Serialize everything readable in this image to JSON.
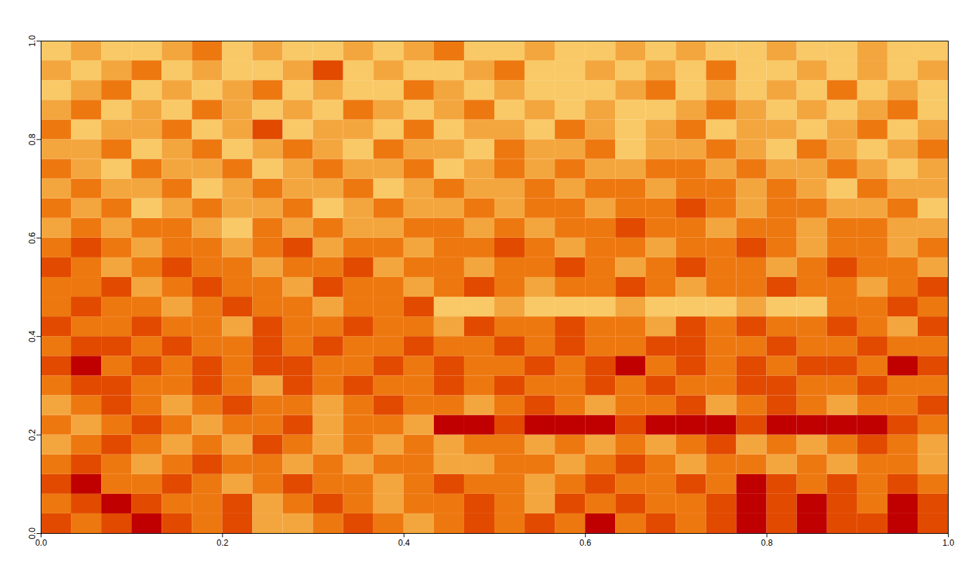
{
  "chart_data": {
    "type": "heatmap",
    "xlim": [
      0,
      1
    ],
    "ylim": [
      0,
      1
    ],
    "xticks": [
      {
        "value": 0,
        "label": "0.0"
      },
      {
        "value": 0.2,
        "label": "0.2"
      },
      {
        "value": 0.4,
        "label": "0.4"
      },
      {
        "value": 0.6,
        "label": "0.6"
      },
      {
        "value": 0.8,
        "label": "0.8"
      },
      {
        "value": 1,
        "label": "1.0"
      }
    ],
    "yticks": [
      {
        "value": 0,
        "label": "0.0"
      },
      {
        "value": 0.2,
        "label": "0.2"
      },
      {
        "value": 0.4,
        "label": "0.4"
      },
      {
        "value": 0.6,
        "label": "0.6"
      },
      {
        "value": 0.8,
        "label": "0.8"
      },
      {
        "value": 1,
        "label": "1.0"
      }
    ],
    "colors": [
      "#c00000",
      "#e24a00",
      "#ee7810",
      "#f4a63e",
      "#f8c966"
    ],
    "cells": [
      [
        1,
        2,
        1,
        0,
        1,
        2,
        1,
        3,
        3,
        2,
        1,
        2,
        3,
        2,
        1,
        2,
        1,
        2,
        0,
        2,
        1,
        2,
        1,
        0,
        1,
        0,
        1,
        1,
        0,
        1
      ],
      [
        2,
        1,
        0,
        1,
        2,
        2,
        1,
        3,
        2,
        1,
        2,
        3,
        2,
        2,
        1,
        2,
        3,
        1,
        2,
        1,
        2,
        2,
        1,
        0,
        1,
        0,
        1,
        2,
        0,
        1
      ],
      [
        1,
        0,
        2,
        2,
        1,
        2,
        3,
        2,
        1,
        2,
        2,
        3,
        2,
        1,
        2,
        2,
        3,
        2,
        1,
        2,
        2,
        1,
        2,
        0,
        1,
        2,
        1,
        2,
        1,
        2
      ],
      [
        2,
        1,
        2,
        3,
        2,
        1,
        2,
        2,
        3,
        2,
        3,
        2,
        2,
        3,
        3,
        2,
        2,
        3,
        2,
        1,
        2,
        3,
        2,
        2,
        3,
        2,
        3,
        2,
        2,
        3
      ],
      [
        3,
        2,
        1,
        2,
        3,
        2,
        3,
        1,
        2,
        3,
        2,
        3,
        2,
        3,
        2,
        2,
        3,
        2,
        3,
        2,
        3,
        2,
        1,
        3,
        2,
        3,
        2,
        1,
        2,
        3
      ],
      [
        2,
        3,
        2,
        1,
        2,
        3,
        2,
        2,
        1,
        3,
        2,
        2,
        3,
        0,
        0,
        1,
        0,
        0,
        0,
        1,
        0,
        0,
        0,
        1,
        0,
        0,
        0,
        0,
        1,
        2
      ],
      [
        3,
        2,
        1,
        2,
        3,
        2,
        1,
        2,
        2,
        3,
        2,
        1,
        2,
        2,
        3,
        2,
        1,
        2,
        3,
        2,
        2,
        1,
        3,
        2,
        1,
        2,
        3,
        2,
        2,
        1
      ],
      [
        2,
        1,
        1,
        2,
        2,
        1,
        2,
        3,
        1,
        2,
        1,
        2,
        2,
        1,
        2,
        1,
        2,
        2,
        1,
        2,
        1,
        2,
        2,
        1,
        1,
        2,
        2,
        1,
        2,
        2
      ],
      [
        1,
        0,
        2,
        1,
        2,
        1,
        2,
        1,
        1,
        2,
        2,
        1,
        2,
        1,
        2,
        2,
        1,
        2,
        1,
        0,
        2,
        1,
        2,
        1,
        2,
        1,
        1,
        2,
        0,
        1
      ],
      [
        2,
        1,
        1,
        2,
        1,
        2,
        2,
        1,
        2,
        1,
        2,
        2,
        1,
        2,
        2,
        1,
        2,
        1,
        2,
        2,
        1,
        1,
        2,
        2,
        1,
        2,
        2,
        1,
        2,
        2
      ],
      [
        1,
        2,
        2,
        1,
        2,
        2,
        3,
        1,
        2,
        2,
        1,
        2,
        2,
        3,
        1,
        2,
        2,
        1,
        2,
        2,
        3,
        1,
        2,
        1,
        2,
        2,
        1,
        2,
        3,
        1
      ],
      [
        2,
        1,
        2,
        2,
        3,
        2,
        1,
        2,
        2,
        3,
        2,
        2,
        1,
        4,
        4,
        3,
        4,
        4,
        4,
        3,
        4,
        4,
        4,
        3,
        4,
        4,
        2,
        2,
        1,
        2
      ],
      [
        2,
        2,
        1,
        3,
        2,
        1,
        2,
        2,
        3,
        1,
        2,
        2,
        3,
        2,
        1,
        2,
        3,
        2,
        2,
        1,
        2,
        3,
        2,
        2,
        1,
        2,
        2,
        3,
        2,
        1
      ],
      [
        1,
        2,
        3,
        2,
        1,
        2,
        2,
        3,
        2,
        2,
        1,
        3,
        2,
        2,
        3,
        2,
        2,
        1,
        2,
        3,
        2,
        1,
        2,
        2,
        3,
        2,
        1,
        2,
        2,
        3
      ],
      [
        2,
        1,
        2,
        3,
        2,
        2,
        3,
        2,
        1,
        3,
        2,
        2,
        3,
        2,
        2,
        1,
        2,
        3,
        2,
        2,
        3,
        2,
        2,
        1,
        2,
        3,
        2,
        2,
        3,
        2
      ],
      [
        3,
        2,
        3,
        2,
        2,
        3,
        4,
        2,
        3,
        2,
        3,
        3,
        2,
        2,
        3,
        2,
        3,
        2,
        2,
        1,
        2,
        2,
        3,
        2,
        2,
        3,
        2,
        2,
        3,
        3
      ],
      [
        2,
        3,
        2,
        4,
        3,
        2,
        3,
        3,
        2,
        4,
        3,
        2,
        3,
        3,
        2,
        3,
        2,
        2,
        3,
        2,
        2,
        1,
        2,
        3,
        2,
        2,
        3,
        3,
        2,
        4
      ],
      [
        3,
        2,
        3,
        3,
        2,
        4,
        3,
        2,
        3,
        3,
        2,
        4,
        3,
        2,
        3,
        3,
        2,
        3,
        2,
        2,
        3,
        2,
        2,
        3,
        2,
        3,
        4,
        2,
        3,
        3
      ],
      [
        2,
        3,
        4,
        2,
        3,
        3,
        2,
        4,
        3,
        2,
        3,
        3,
        2,
        4,
        3,
        2,
        3,
        2,
        3,
        3,
        2,
        2,
        3,
        2,
        3,
        3,
        2,
        3,
        4,
        3
      ],
      [
        3,
        3,
        2,
        4,
        3,
        2,
        4,
        3,
        2,
        3,
        4,
        2,
        3,
        3,
        4,
        2,
        3,
        3,
        2,
        4,
        3,
        3,
        2,
        3,
        4,
        2,
        3,
        4,
        3,
        2
      ],
      [
        2,
        4,
        3,
        3,
        2,
        4,
        3,
        1,
        4,
        3,
        3,
        4,
        2,
        4,
        3,
        3,
        4,
        2,
        3,
        4,
        3,
        2,
        4,
        3,
        3,
        4,
        3,
        2,
        4,
        3
      ],
      [
        3,
        2,
        4,
        3,
        4,
        2,
        3,
        4,
        3,
        4,
        2,
        3,
        4,
        3,
        2,
        4,
        3,
        4,
        3,
        4,
        4,
        3,
        2,
        3,
        4,
        3,
        4,
        3,
        2,
        4
      ],
      [
        4,
        3,
        2,
        4,
        3,
        4,
        3,
        2,
        4,
        3,
        4,
        4,
        2,
        3,
        4,
        3,
        4,
        4,
        4,
        3,
        2,
        4,
        3,
        4,
        3,
        4,
        2,
        4,
        3,
        4
      ],
      [
        3,
        4,
        3,
        2,
        4,
        3,
        4,
        4,
        3,
        1,
        4,
        3,
        4,
        4,
        3,
        2,
        4,
        4,
        3,
        4,
        3,
        4,
        2,
        4,
        4,
        3,
        4,
        3,
        4,
        3
      ],
      [
        4,
        3,
        4,
        4,
        3,
        2,
        4,
        3,
        4,
        4,
        3,
        4,
        3,
        2,
        4,
        4,
        3,
        4,
        4,
        3,
        4,
        3,
        4,
        4,
        3,
        4,
        4,
        3,
        4,
        4
      ]
    ]
  }
}
